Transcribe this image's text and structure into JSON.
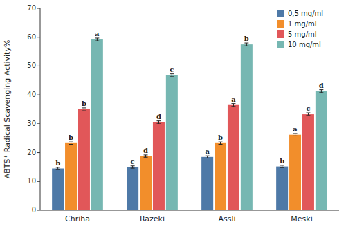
{
  "chart_data": {
    "type": "bar",
    "y_label": "ABTS⁺ Radical Scavenging Activity%",
    "categories": [
      "Chriha",
      "Razeki",
      "Assli",
      "Meski"
    ],
    "series": [
      {
        "name": "0,5 mg/ml",
        "values": [
          14.5,
          15.0,
          18.5,
          15.2
        ],
        "errors": [
          0.4,
          0.4,
          0.4,
          0.4
        ],
        "annotations": [
          "b",
          "c",
          "a",
          "b"
        ]
      },
      {
        "name": "1 mg/ml",
        "values": [
          23.3,
          18.8,
          23.3,
          26.2
        ],
        "errors": [
          0.4,
          0.4,
          0.4,
          0.4
        ],
        "annotations": [
          "b",
          "d",
          "b",
          "a"
        ]
      },
      {
        "name": "5 mg/ml",
        "values": [
          35.0,
          30.5,
          36.5,
          33.3
        ],
        "errors": [
          0.5,
          0.5,
          0.5,
          0.5
        ],
        "annotations": [
          "b",
          "d",
          "a",
          "c"
        ]
      },
      {
        "name": "10 mg/ml",
        "values": [
          59.2,
          46.8,
          57.5,
          41.3
        ],
        "errors": [
          0.5,
          0.5,
          0.5,
          0.5
        ],
        "annotations": [
          "a",
          "c",
          "b",
          "d"
        ]
      }
    ],
    "ylim": [
      0,
      70
    ],
    "yticks": [
      0,
      10,
      20,
      30,
      40,
      50,
      60,
      70
    ],
    "grid": false,
    "legend": "upper right"
  }
}
